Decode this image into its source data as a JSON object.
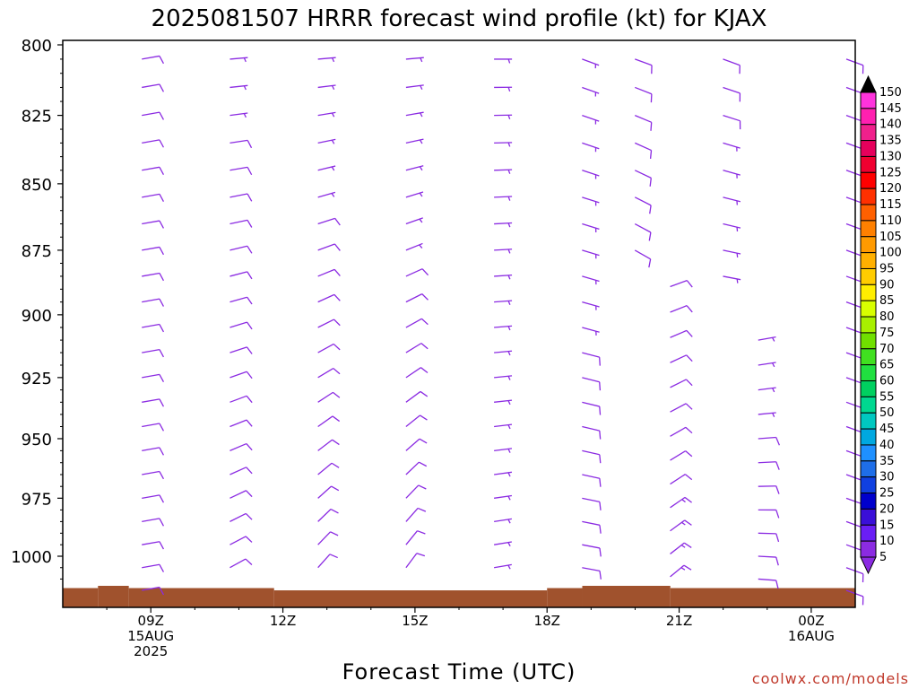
{
  "chart_data": {
    "type": "wind_barb_time_height",
    "title": "2025081507 HRRR forecast wind profile (kt) for KJAX",
    "xlabel": "Forecast Time (UTC)",
    "credit": "coolwx.com/models",
    "x_ticks": [
      {
        "hour": 9,
        "lines": [
          "09Z",
          "15AUG",
          "2025"
        ]
      },
      {
        "hour": 12,
        "lines": [
          "12Z"
        ]
      },
      {
        "hour": 15,
        "lines": [
          "15Z"
        ]
      },
      {
        "hour": 18,
        "lines": [
          "18Z"
        ]
      },
      {
        "hour": 21,
        "lines": [
          "21Z"
        ]
      },
      {
        "hour": 24,
        "lines": [
          "00Z",
          "16AUG"
        ]
      }
    ],
    "x_range_hours": [
      7,
      25
    ],
    "y_axis": {
      "unit": "hPa",
      "top": 800,
      "bottom": 1020,
      "scale": "log"
    },
    "y_ticks": [
      800,
      825,
      850,
      875,
      900,
      925,
      950,
      975,
      1000
    ],
    "forecast_hours": [
      9,
      11,
      13,
      15,
      17,
      19,
      21,
      23,
      25
    ],
    "barb_color": "#8b2be2",
    "profiles": [
      {
        "hour": 9,
        "top_level": 800,
        "surface_level": 1015,
        "dir_top": 80,
        "dir_bottom": 80,
        "speed_top": 8,
        "speed_bottom": 10
      },
      {
        "hour": 11,
        "top_level": 800,
        "surface_level": 1014,
        "dir_top": 85,
        "dir_bottom": 60,
        "speed_top": 7,
        "speed_bottom": 11
      },
      {
        "hour": 13,
        "top_level": 800,
        "surface_level": 1013,
        "dir_top": 85,
        "dir_bottom": 40,
        "speed_top": 6,
        "speed_bottom": 12
      },
      {
        "hour": 15,
        "top_level": 800,
        "surface_level": 1012,
        "dir_top": 85,
        "dir_bottom": 35,
        "speed_top": 6,
        "speed_bottom": 10
      },
      {
        "hour": 17,
        "top_level": 800,
        "surface_level": 1013,
        "dir_top": 90,
        "dir_bottom": 80,
        "speed_top": 6,
        "speed_bottom": 7
      },
      {
        "hour": 19,
        "top_level": 800,
        "surface_level": 1012,
        "dir_top": 110,
        "dir_bottom": 100,
        "speed_top": 7,
        "speed_bottom": 8
      },
      {
        "hour": 21,
        "top_level": 884,
        "surface_level": 1012,
        "dir_top": 70,
        "dir_bottom": 50,
        "speed_top": 9,
        "speed_bottom": 14
      },
      {
        "hour": 23,
        "top_level": 905,
        "surface_level": 1014,
        "dir_top": 80,
        "dir_bottom": 95,
        "speed_top": 6,
        "speed_bottom": 10
      },
      {
        "hour": 25,
        "top_level": 800,
        "surface_level": 1015,
        "dir_top": 110,
        "dir_bottom": 110,
        "speed_top": 8,
        "speed_bottom": 10
      }
    ],
    "upper_profiles": [
      {
        "hour": 21,
        "top_level": 800,
        "bottom_level": 878,
        "dir_top": 110,
        "dir_bottom": 120,
        "speed_top": 8,
        "speed_bottom": 8
      },
      {
        "hour": 23,
        "top_level": 800,
        "bottom_level": 892,
        "dir_top": 110,
        "dir_bottom": 100,
        "speed_top": 8,
        "speed_bottom": 6
      }
    ],
    "terrain_color": "#a0522d",
    "terrain_segments": [
      {
        "from_hour": 7.0,
        "to_hour": 7.8,
        "level": 1014
      },
      {
        "from_hour": 7.8,
        "to_hour": 8.5,
        "level": 1013
      },
      {
        "from_hour": 8.5,
        "to_hour": 11.8,
        "level": 1014
      },
      {
        "from_hour": 11.8,
        "to_hour": 18.0,
        "level": 1015
      },
      {
        "from_hour": 18.0,
        "to_hour": 18.8,
        "level": 1014
      },
      {
        "from_hour": 18.8,
        "to_hour": 20.8,
        "level": 1013
      },
      {
        "from_hour": 20.8,
        "to_hour": 25.0,
        "level": 1014
      }
    ],
    "colorbar": {
      "unit": "kt",
      "levels": [
        5,
        10,
        15,
        20,
        25,
        30,
        35,
        40,
        45,
        50,
        55,
        60,
        65,
        70,
        75,
        80,
        85,
        90,
        95,
        100,
        105,
        110,
        115,
        120,
        125,
        130,
        135,
        140,
        145,
        150
      ],
      "colors": [
        "#8b2be2",
        "#6a1ef5",
        "#3a0fd8",
        "#0000cc",
        "#1040e0",
        "#1e6ee8",
        "#1e90ff",
        "#00a8e0",
        "#00c8c0",
        "#00d890",
        "#00d060",
        "#20e040",
        "#40e020",
        "#70e000",
        "#a8f000",
        "#d8ff00",
        "#ffee00",
        "#ffcc00",
        "#ffb000",
        "#ff9a00",
        "#ff8000",
        "#ff6000",
        "#ff3000",
        "#ff0000",
        "#f00030",
        "#e6005c",
        "#f0208c",
        "#ff20b0",
        "#ff33dd"
      ],
      "top_triangle": "#000000",
      "bottom_triangle": "#8b2be2"
    }
  }
}
